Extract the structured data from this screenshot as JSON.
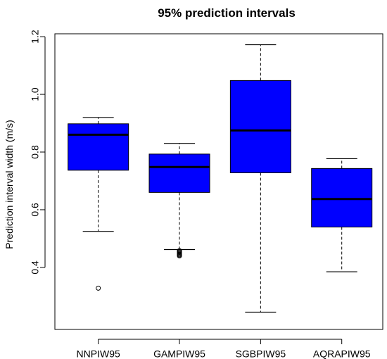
{
  "chart_data": {
    "type": "box",
    "title": "95% prediction intervals",
    "xlabel": "",
    "ylabel": "Prediction interval width (m/s)",
    "ylim": [
      0.185,
      1.21
    ],
    "yticks": [
      0.4,
      0.6,
      0.8,
      1.0,
      1.2
    ],
    "ytick_labels": [
      "0.4",
      "0.6",
      "0.8",
      "1.0",
      "1.2"
    ],
    "grid": false,
    "box_color": "#0000ff",
    "categories": [
      "NNPIW95",
      "GAMPIW95",
      "SGBPIW95",
      "AQRAPIW95"
    ],
    "boxes": [
      {
        "label": "NNPIW95",
        "whisker_low": 0.525,
        "q1": 0.737,
        "median": 0.86,
        "q3": 0.898,
        "whisker_high": 0.92,
        "outliers": [
          0.328
        ]
      },
      {
        "label": "GAMPIW95",
        "whisker_low": 0.462,
        "q1": 0.66,
        "median": 0.748,
        "q3": 0.793,
        "whisker_high": 0.83,
        "outliers": [
          0.44,
          0.443,
          0.446,
          0.449,
          0.452,
          0.455,
          0.458
        ]
      },
      {
        "label": "SGBPIW95",
        "whisker_low": 0.245,
        "q1": 0.728,
        "median": 0.875,
        "q3": 1.048,
        "whisker_high": 1.172,
        "outliers": []
      },
      {
        "label": "AQRAPIW95",
        "whisker_low": 0.385,
        "q1": 0.54,
        "median": 0.637,
        "q3": 0.743,
        "whisker_high": 0.777,
        "outliers": []
      }
    ]
  }
}
